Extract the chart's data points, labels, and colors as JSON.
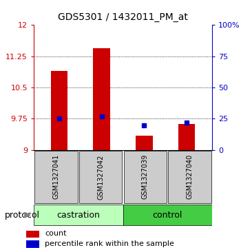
{
  "title": "GDS5301 / 1432011_PM_at",
  "samples": [
    "GSM1327041",
    "GSM1327042",
    "GSM1327039",
    "GSM1327040"
  ],
  "group_labels": [
    "castration",
    "control"
  ],
  "red_values": [
    10.9,
    11.45,
    9.35,
    9.62
  ],
  "blue_values_pct": [
    25,
    27,
    20,
    22
  ],
  "ylim": [
    9,
    12
  ],
  "yticks": [
    9,
    9.75,
    10.5,
    11.25,
    12
  ],
  "ytick_labels": [
    "9",
    "9.75",
    "10.5",
    "11.25",
    "12"
  ],
  "right_yticks": [
    0,
    25,
    50,
    75,
    100
  ],
  "right_ytick_labels": [
    "0",
    "25",
    "50",
    "75",
    "100%"
  ],
  "left_tick_color": "#cc0000",
  "right_tick_color": "#0000cc",
  "bar_color": "#cc0000",
  "dot_color": "#0000cc",
  "castration_color": "#bbffbb",
  "control_color": "#44cc44",
  "sample_box_color": "#cccccc",
  "bar_width": 0.4,
  "grid_lines": [
    9.75,
    10.5,
    11.25
  ],
  "legend_count_label": "count",
  "legend_pct_label": "percentile rank within the sample",
  "protocol_label": "protocol"
}
